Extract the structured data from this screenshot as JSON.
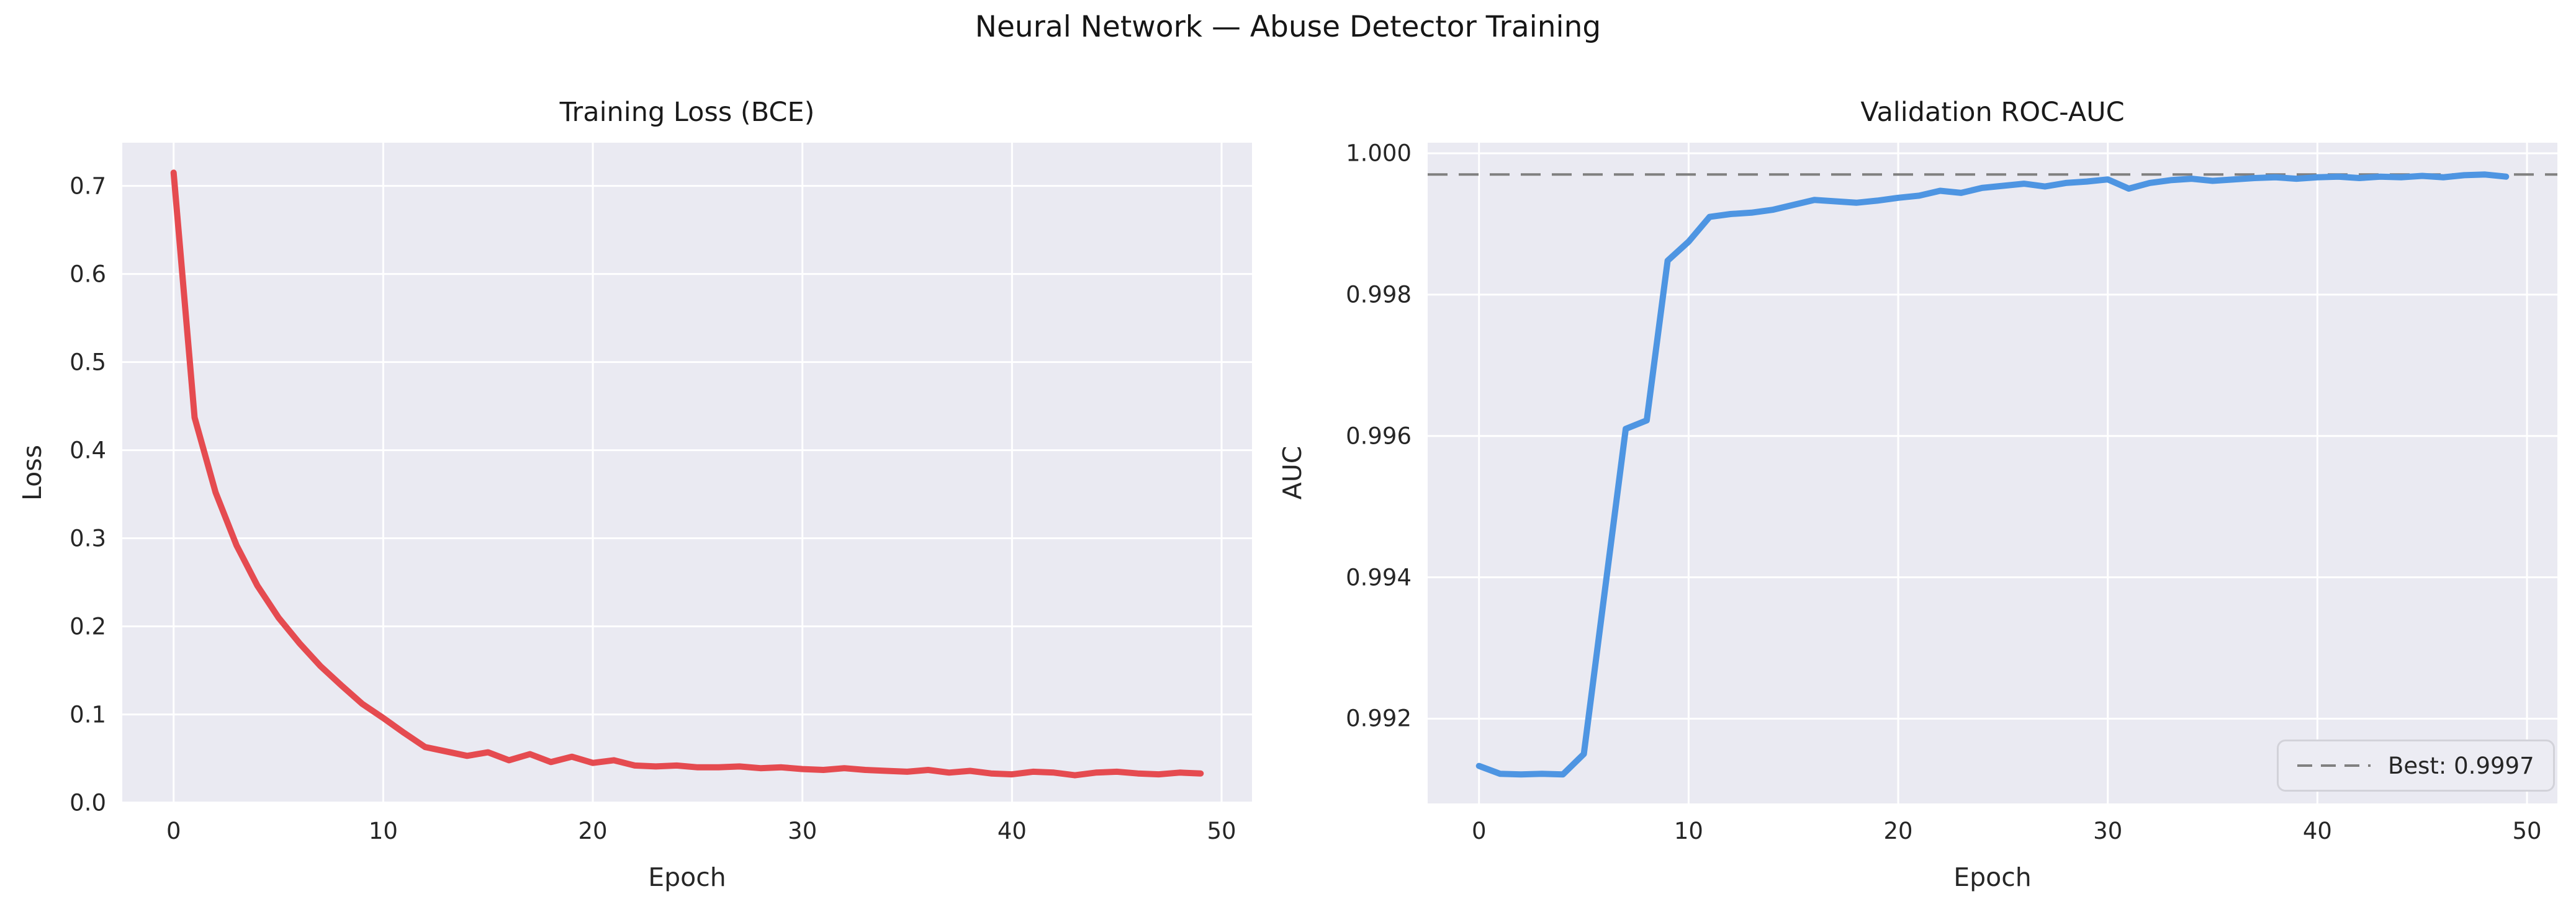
{
  "figure": {
    "title": "Neural Network — Abuse Detector Training"
  },
  "colors": {
    "figure_bg": "#ffffff",
    "plot_bg": "#eaeaf2",
    "grid": "#ffffff",
    "text": "#262626",
    "loss_line": "#e54b50",
    "auc_line": "#4e95e2",
    "best_line": "#808080",
    "legend_border": "#d2d2d9"
  },
  "chart_data": [
    {
      "type": "line",
      "title": "Training Loss (BCE)",
      "xlabel": "Epoch",
      "ylabel": "Loss",
      "legend_position": "none",
      "grid": true,
      "xlim": [
        -2.45,
        51.45
      ],
      "ylim": [
        -0.001,
        0.749
      ],
      "xticks": [
        0,
        10,
        20,
        30,
        40,
        50
      ],
      "yticks": [
        0.0,
        0.1,
        0.2,
        0.3,
        0.4,
        0.5,
        0.6,
        0.7
      ],
      "ytick_decimals": 1,
      "line_color": "#e54b50",
      "x": [
        0,
        1,
        2,
        3,
        4,
        5,
        6,
        7,
        8,
        9,
        10,
        11,
        12,
        13,
        14,
        15,
        16,
        17,
        18,
        19,
        20,
        21,
        22,
        23,
        24,
        25,
        26,
        27,
        28,
        29,
        30,
        31,
        32,
        33,
        34,
        35,
        36,
        37,
        38,
        39,
        40,
        41,
        42,
        43,
        44,
        45,
        46,
        47,
        48,
        49
      ],
      "values": [
        0.715,
        0.437,
        0.352,
        0.292,
        0.246,
        0.21,
        0.181,
        0.155,
        0.133,
        0.112,
        0.096,
        0.079,
        0.063,
        0.058,
        0.053,
        0.057,
        0.048,
        0.055,
        0.046,
        0.052,
        0.045,
        0.048,
        0.042,
        0.041,
        0.042,
        0.04,
        0.04,
        0.041,
        0.039,
        0.04,
        0.038,
        0.037,
        0.039,
        0.037,
        0.036,
        0.035,
        0.037,
        0.034,
        0.036,
        0.033,
        0.032,
        0.035,
        0.034,
        0.031,
        0.034,
        0.035,
        0.033,
        0.032,
        0.034,
        0.033
      ]
    },
    {
      "type": "line",
      "title": "Validation ROC-AUC",
      "xlabel": "Epoch",
      "ylabel": "AUC",
      "grid": true,
      "xlim": [
        -2.45,
        51.45
      ],
      "ylim": [
        0.9908,
        1.00015
      ],
      "xticks": [
        0,
        10,
        20,
        30,
        40,
        50
      ],
      "yticks": [
        0.992,
        0.994,
        0.996,
        0.998,
        1.0
      ],
      "ytick_decimals": 3,
      "line_color": "#4e95e2",
      "x": [
        0,
        1,
        2,
        3,
        4,
        5,
        6,
        7,
        8,
        9,
        10,
        11,
        12,
        13,
        14,
        15,
        16,
        17,
        18,
        19,
        20,
        21,
        22,
        23,
        24,
        25,
        26,
        27,
        28,
        29,
        30,
        31,
        32,
        33,
        34,
        35,
        36,
        37,
        38,
        39,
        40,
        41,
        42,
        43,
        44,
        45,
        46,
        47,
        48,
        49
      ],
      "values": [
        0.99133,
        0.99122,
        0.99121,
        0.99122,
        0.99121,
        0.9915,
        0.9938,
        0.9961,
        0.99622,
        0.99848,
        0.99875,
        0.9991,
        0.99914,
        0.99916,
        0.9992,
        0.99927,
        0.99934,
        0.99932,
        0.9993,
        0.99933,
        0.99937,
        0.9994,
        0.99947,
        0.99944,
        0.99951,
        0.99954,
        0.99957,
        0.99953,
        0.99958,
        0.9996,
        0.99963,
        0.9995,
        0.99958,
        0.99962,
        0.99964,
        0.99961,
        0.99963,
        0.99965,
        0.99966,
        0.99964,
        0.99966,
        0.99967,
        0.99965,
        0.99967,
        0.99966,
        0.99968,
        0.99966,
        0.99969,
        0.9997,
        0.99967
      ],
      "ref_line": {
        "value": 0.9997,
        "style": "dashed",
        "color": "#808080"
      },
      "legend": {
        "label": "Best: 0.9997",
        "position": "lower right"
      }
    }
  ]
}
